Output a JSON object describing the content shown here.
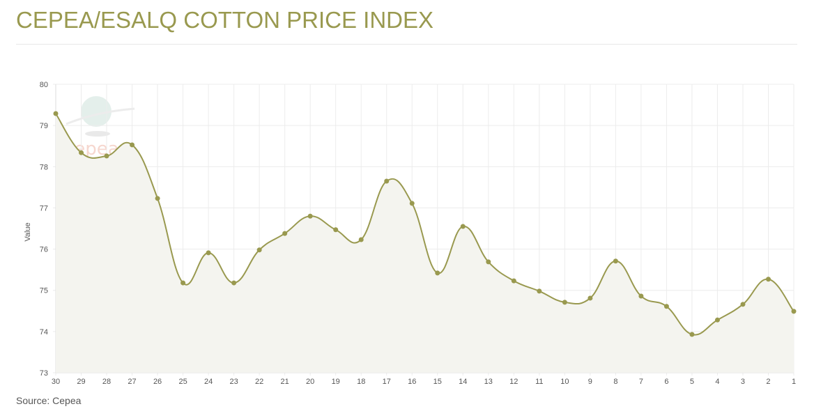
{
  "title": "CEPEA/ESALQ COTTON PRICE INDEX",
  "source": "Source: Cepea",
  "watermark": "cepea",
  "colors": {
    "line": "#99994f",
    "fill": "#f4f4ef",
    "grid": "#ececec"
  },
  "chart_data": {
    "type": "line",
    "title": "CEPEA/ESALQ COTTON PRICE INDEX",
    "xlabel": "",
    "ylabel": "Value",
    "ylim": [
      73,
      80
    ],
    "yticks": [
      73,
      74,
      75,
      76,
      77,
      78,
      79,
      80
    ],
    "grid": true,
    "categories": [
      "30",
      "29",
      "28",
      "27",
      "26",
      "25",
      "24",
      "23",
      "22",
      "21",
      "20",
      "19",
      "18",
      "17",
      "16",
      "15",
      "14",
      "13",
      "12",
      "11",
      "10",
      "9",
      "8",
      "7",
      "6",
      "5",
      "4",
      "3",
      "2",
      "1"
    ],
    "series": [
      {
        "name": "Value",
        "values": [
          79.29,
          78.34,
          78.26,
          78.53,
          77.23,
          75.18,
          75.91,
          75.18,
          75.98,
          76.38,
          76.8,
          76.47,
          76.23,
          77.65,
          77.11,
          75.42,
          76.55,
          75.69,
          75.23,
          74.98,
          74.71,
          74.81,
          75.71,
          74.86,
          74.61,
          73.93,
          74.28,
          74.66,
          75.27,
          74.49
        ]
      }
    ]
  }
}
